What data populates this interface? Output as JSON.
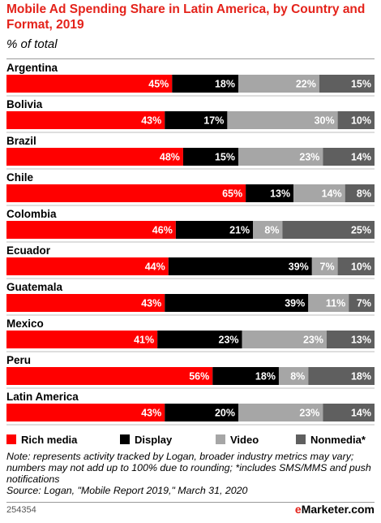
{
  "header": {
    "title": "Mobile Ad Spending Share in Latin America, by Country and Format, 2019",
    "subtitle": "% of total"
  },
  "colors": {
    "rich_media": "#ff0000",
    "display": "#000000",
    "video": "#a6a6a6",
    "nonmedia": "#5f5f5f",
    "brand_red": "#e4231b"
  },
  "chart_data": {
    "type": "bar",
    "orientation": "horizontal",
    "stacked": true,
    "categories": [
      "Argentina",
      "Bolivia",
      "Brazil",
      "Chile",
      "Colombia",
      "Ecuador",
      "Guatemala",
      "Mexico",
      "Peru",
      "Latin America"
    ],
    "series": [
      {
        "name": "Rich media",
        "color": "#ff0000",
        "values": [
          45,
          43,
          48,
          65,
          46,
          44,
          43,
          41,
          56,
          43
        ]
      },
      {
        "name": "Display",
        "color": "#000000",
        "values": [
          18,
          17,
          15,
          13,
          21,
          39,
          39,
          23,
          18,
          20
        ]
      },
      {
        "name": "Video",
        "color": "#a6a6a6",
        "values": [
          22,
          30,
          23,
          14,
          8,
          7,
          11,
          23,
          8,
          23
        ]
      },
      {
        "name": "Nonmedia*",
        "color": "#5f5f5f",
        "values": [
          15,
          10,
          14,
          8,
          25,
          10,
          7,
          13,
          18,
          14
        ]
      }
    ],
    "value_suffix": "%",
    "xlim": [
      0,
      100
    ],
    "legend_position": "bottom"
  },
  "legend": {
    "items": [
      {
        "label": "Rich media",
        "color": "#ff0000"
      },
      {
        "label": "Display",
        "color": "#000000"
      },
      {
        "label": "Video",
        "color": "#a6a6a6"
      },
      {
        "label": "Nonmedia*",
        "color": "#5f5f5f"
      }
    ]
  },
  "footer": {
    "note": "Note: represents activity tracked by Logan, broader industry metrics may vary; numbers may not add up to 100% due to rounding; *includes SMS/MMS and push notifications",
    "source": "Source: Logan, \"Mobile Report 2019,\" March 31, 2020",
    "chart_id": "254354",
    "brand_prefix": "e",
    "brand_name": "Marketer",
    "brand_suffix": ".com"
  }
}
